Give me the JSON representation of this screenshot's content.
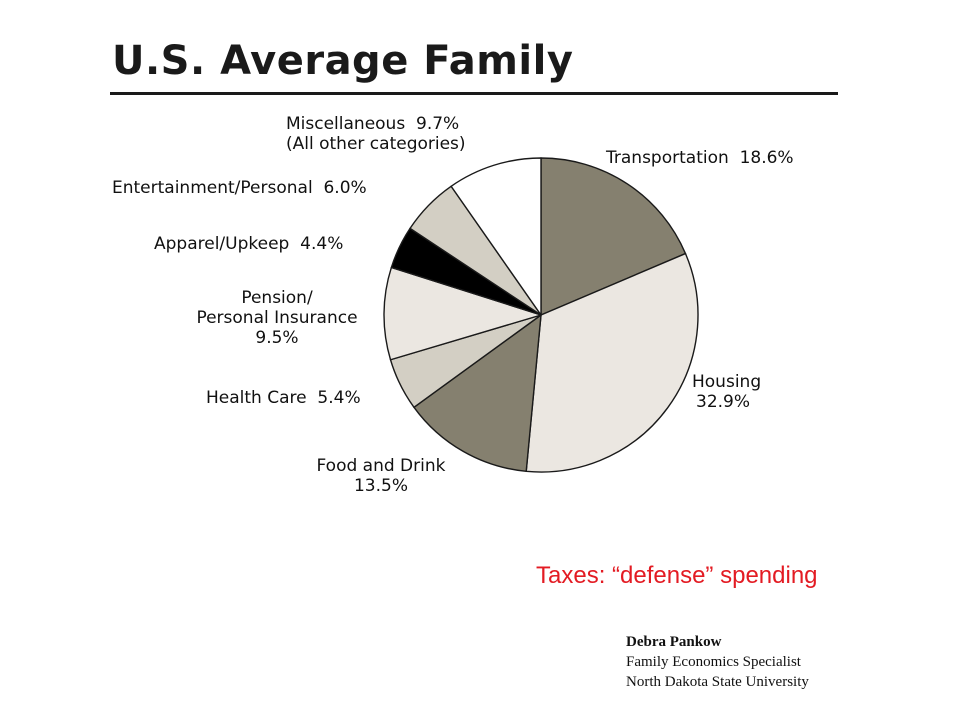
{
  "title": "U.S. Average Family",
  "chart_data": {
    "type": "pie",
    "title": "U.S. Average Family",
    "slices": [
      {
        "label": "Transportation",
        "value": 18.6,
        "color": "#85806f"
      },
      {
        "label": "Housing",
        "value": 32.9,
        "color": "#ebe7e1"
      },
      {
        "label": "Food and Drink",
        "value": 13.5,
        "color": "#85806f"
      },
      {
        "label": "Health Care",
        "value": 5.4,
        "color": "#d3cfc4"
      },
      {
        "label": "Pension/ Personal Insurance",
        "value": 9.5,
        "color": "#ebe7e1"
      },
      {
        "label": "Apparel/Upkeep",
        "value": 4.4,
        "color": "#000000"
      },
      {
        "label": "Entertainment/Personal",
        "value": 6.0,
        "color": "#d3cfc4"
      },
      {
        "label": "Miscellaneous (All other categories)",
        "value": 9.7,
        "color": "#ffffff"
      }
    ]
  },
  "labels": {
    "transportation": {
      "name": "Transportation",
      "pct": "18.6%"
    },
    "housing": {
      "name": "Housing",
      "pct": "32.9%"
    },
    "food": {
      "name": "Food and Drink",
      "pct": "13.5%"
    },
    "health": {
      "name": "Health Care",
      "pct": "5.4%"
    },
    "pension": {
      "line1": "Pension/",
      "line2": "Personal Insurance",
      "pct": "9.5%"
    },
    "apparel": {
      "name": "Apparel/Upkeep",
      "pct": "4.4%"
    },
    "entertainment": {
      "name": "Entertainment/Personal",
      "pct": "6.0%"
    },
    "misc": {
      "name": "Miscellaneous",
      "pct": "9.7%",
      "line2": "(All other categories)"
    }
  },
  "note": "Taxes: “defense” spending",
  "credit": {
    "name": "Debra Pankow",
    "role": "Family Economics Specialist",
    "org": "North Dakota State University"
  }
}
